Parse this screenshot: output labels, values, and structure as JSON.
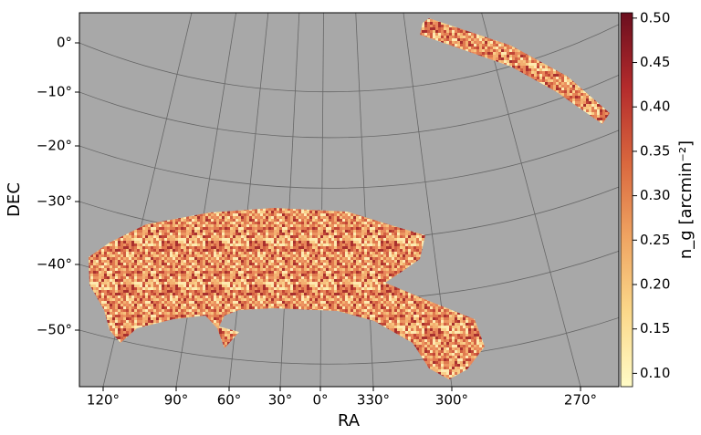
{
  "chart_data": {
    "type": "skymap",
    "xlabel": "RA",
    "ylabel": "DEC",
    "colorbar_label": "n_g [arcmin⁻²]",
    "xticks": [
      {
        "value": 120,
        "label": "120°"
      },
      {
        "value": 90,
        "label": "90°"
      },
      {
        "value": 60,
        "label": "60°"
      },
      {
        "value": 30,
        "label": "30°"
      },
      {
        "value": 0,
        "label": "0°"
      },
      {
        "value": 330,
        "label": "330°"
      },
      {
        "value": 300,
        "label": "300°"
      },
      {
        "value": 270,
        "label": "270°"
      }
    ],
    "yticks": [
      {
        "value": 0,
        "label": "0°"
      },
      {
        "value": -10,
        "label": "−10°"
      },
      {
        "value": -20,
        "label": "−20°"
      },
      {
        "value": -30,
        "label": "−30°"
      },
      {
        "value": -40,
        "label": "−40°"
      },
      {
        "value": -50,
        "label": "−50°"
      }
    ],
    "clim": [
      0.085,
      0.506
    ],
    "cticks": [
      {
        "value": 0.1,
        "label": "0.10"
      },
      0.15,
      {
        "value": 0.2,
        "label": "0.20"
      },
      0.25,
      {
        "value": 0.3,
        "label": "0.30"
      },
      0.35,
      {
        "value": 0.4,
        "label": "0.40"
      },
      0.45,
      {
        "value": 0.5,
        "label": "0.50"
      }
    ],
    "grid": true
  }
}
